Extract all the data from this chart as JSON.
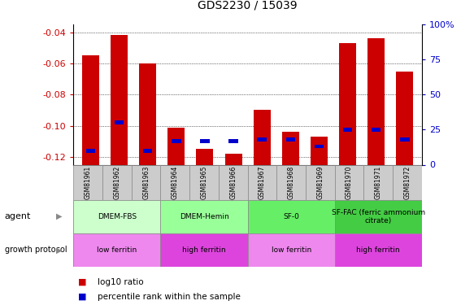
{
  "title": "GDS2230 / 15039",
  "samples": [
    "GSM81961",
    "GSM81962",
    "GSM81963",
    "GSM81964",
    "GSM81965",
    "GSM81966",
    "GSM81967",
    "GSM81968",
    "GSM81969",
    "GSM81970",
    "GSM81971",
    "GSM81972"
  ],
  "log10_ratio": [
    -0.055,
    -0.042,
    -0.06,
    -0.101,
    -0.115,
    -0.118,
    -0.09,
    -0.104,
    -0.107,
    -0.047,
    -0.044,
    -0.065
  ],
  "percentile_rank": [
    10,
    30,
    10,
    17,
    17,
    17,
    18,
    18,
    13,
    25,
    25,
    18
  ],
  "ylim_left": [
    -0.125,
    -0.035
  ],
  "yticks_left": [
    -0.04,
    -0.06,
    -0.08,
    -0.1,
    -0.12
  ],
  "yticks_right": [
    0,
    25,
    50,
    75,
    100
  ],
  "bar_color": "#cc0000",
  "percentile_color": "#0000cc",
  "agent_groups": [
    {
      "label": "DMEM-FBS",
      "start": 0,
      "end": 3,
      "color": "#ccffcc"
    },
    {
      "label": "DMEM-Hemin",
      "start": 3,
      "end": 6,
      "color": "#99ff99"
    },
    {
      "label": "SF-0",
      "start": 6,
      "end": 9,
      "color": "#66ee66"
    },
    {
      "label": "SF-FAC (ferric ammonium\ncitrate)",
      "start": 9,
      "end": 12,
      "color": "#44cc44"
    }
  ],
  "protocol_groups": [
    {
      "label": "low ferritin",
      "start": 0,
      "end": 3,
      "color": "#ee88ee"
    },
    {
      "label": "high ferritin",
      "start": 3,
      "end": 6,
      "color": "#dd44dd"
    },
    {
      "label": "low ferritin",
      "start": 6,
      "end": 9,
      "color": "#ee88ee"
    },
    {
      "label": "high ferritin",
      "start": 9,
      "end": 12,
      "color": "#dd44dd"
    }
  ],
  "legend_items": [
    {
      "label": "log10 ratio",
      "color": "#cc0000"
    },
    {
      "label": "percentile rank within the sample",
      "color": "#0000cc"
    }
  ],
  "grid_color": "#000000",
  "axis_label_color_left": "#cc0000",
  "axis_label_color_right": "#0000cc",
  "sample_box_color": "#cccccc",
  "border_color": "#888888"
}
